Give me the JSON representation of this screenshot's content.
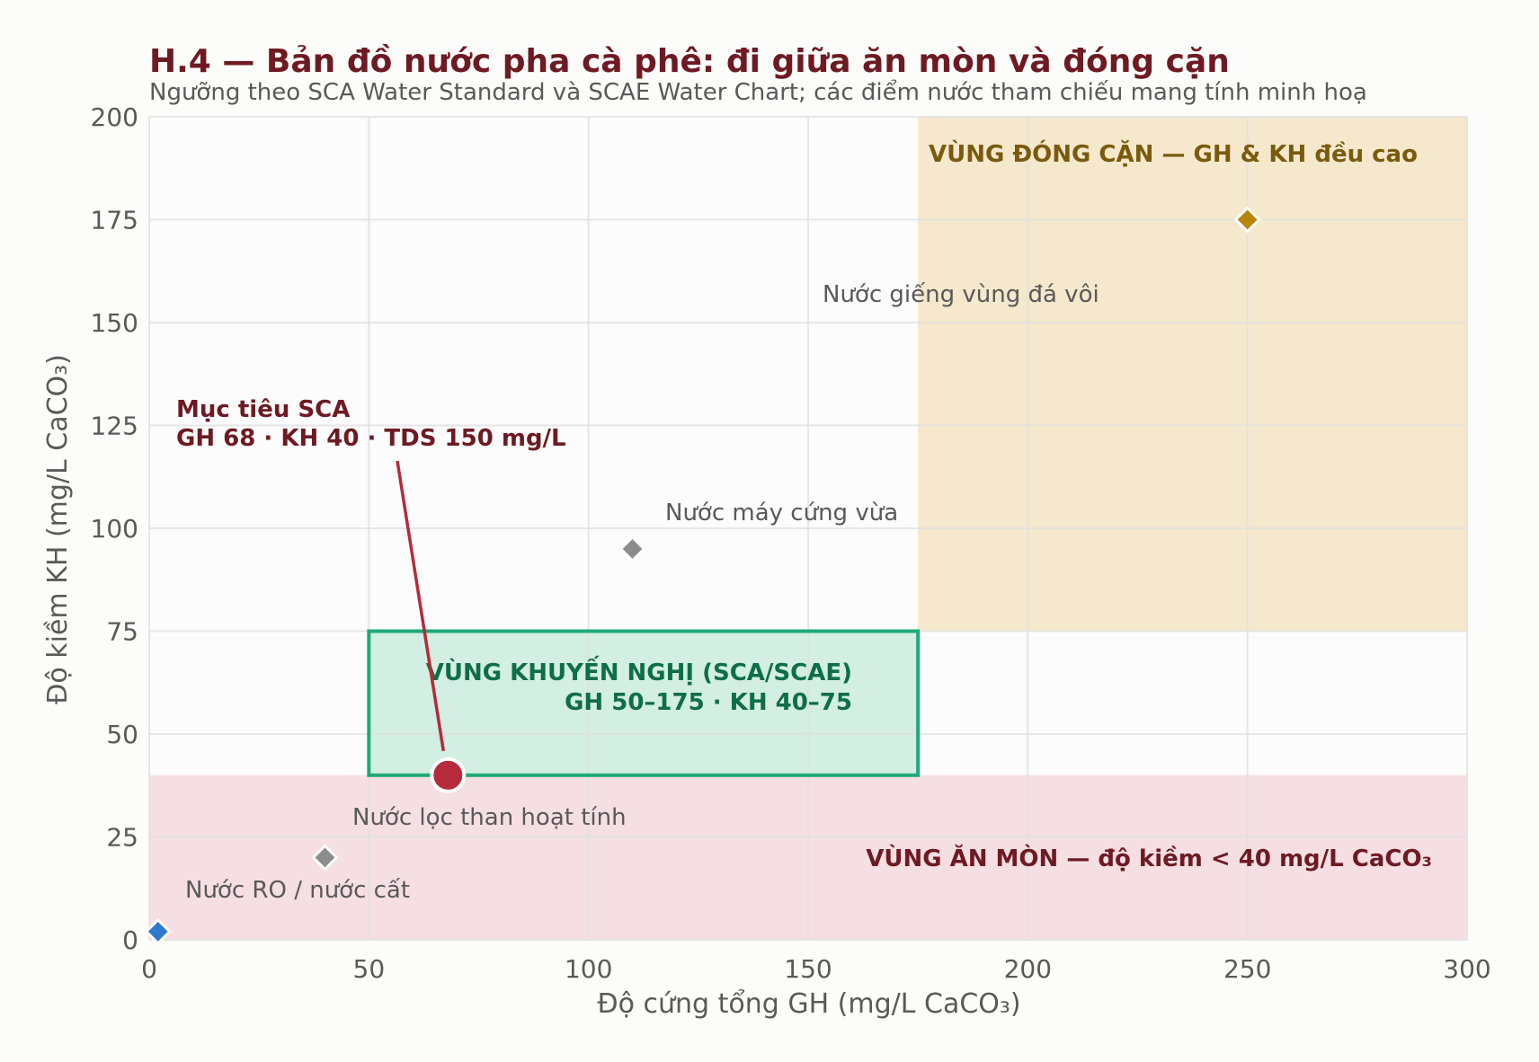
{
  "chart_data": {
    "type": "scatter",
    "title": "H.4 — Bản đồ nước pha cà phê: đi giữa ăn mòn và đóng cặn",
    "subtitle": "Ngưỡng theo SCA Water Standard và SCAE Water Chart; các điểm nước tham chiếu mang tính minh hoạ",
    "xlabel": "Độ cứng tổng GH  (mg/L CaCO₃)",
    "ylabel": "Độ kiềm KH  (mg/L CaCO₃)",
    "xlim": [
      0,
      300
    ],
    "ylim": [
      0,
      200
    ],
    "xticks": [
      0,
      50,
      100,
      150,
      200,
      250,
      300
    ],
    "yticks": [
      0,
      25,
      50,
      75,
      100,
      125,
      150,
      175,
      200
    ],
    "grid": true,
    "zones": [
      {
        "name": "scale",
        "label": "VÙNG ĐÓNG CẶN — GH & KH đều cao",
        "x": [
          175,
          300
        ],
        "y": [
          75,
          200
        ],
        "color": "#f5e8cd",
        "text_color": "#7a5a0c"
      },
      {
        "name": "corrosion",
        "label": "VÙNG ĂN MÒN — độ kiềm < 40 mg/L CaCO₃",
        "x": [
          0,
          300
        ],
        "y": [
          0,
          40
        ],
        "color": "#f6dfe3",
        "text_color": "#6e1a22"
      },
      {
        "name": "recommended",
        "label_lines": [
          "VÙNG KHUYẾN NGHỊ (SCA/SCAE)",
          "GH 50–175 · KH 40–75"
        ],
        "x": [
          50,
          175
        ],
        "y": [
          40,
          75
        ],
        "color": "#d3eee3",
        "border": "#1daa76",
        "text_color": "#0e6e47"
      }
    ],
    "points": [
      {
        "name": "Nước giếng vùng đá vôi",
        "x": 250,
        "y": 175,
        "color": "#b8860b",
        "marker": "diamond"
      },
      {
        "name": "Nước máy cứng vừa",
        "x": 110,
        "y": 95,
        "color": "#8c8c8c",
        "marker": "diamond"
      },
      {
        "name": "Nước lọc than hoạt tính",
        "x": 40,
        "y": 20,
        "color": "#8c8c8c",
        "marker": "diamond"
      },
      {
        "name": "Nước RO / nước cất",
        "x": 2,
        "y": 2,
        "color": "#2f78cf",
        "marker": "diamond"
      }
    ],
    "target": {
      "label_lines": [
        "Mục tiêu SCA",
        "GH 68 · KH 40 · TDS 150 mg/L"
      ],
      "x": 68,
      "y": 40,
      "color": "#b52b3a",
      "marker": "circle"
    }
  }
}
